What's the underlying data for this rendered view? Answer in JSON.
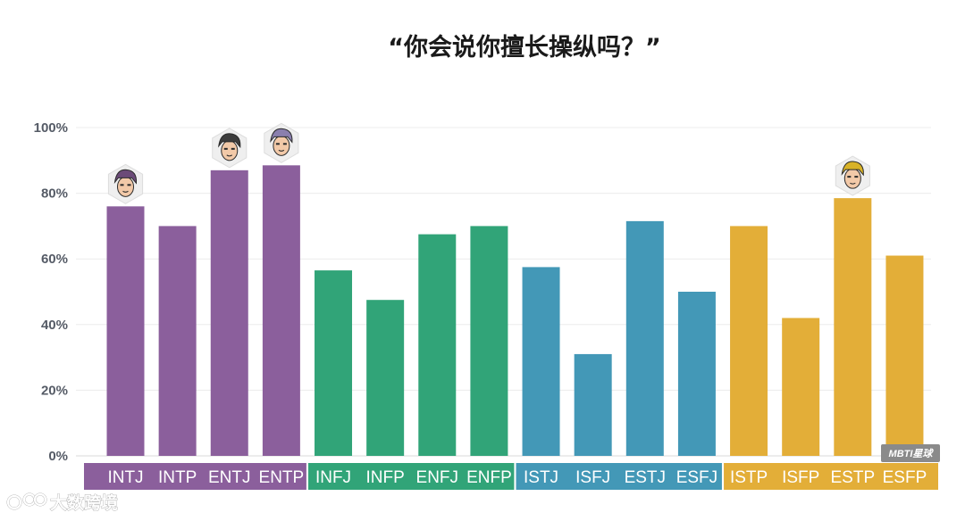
{
  "chart_data": {
    "type": "bar",
    "title": "“你会说你擅长操纵吗？”",
    "ylim": [
      0,
      100
    ],
    "yticks": [
      "0%",
      "20%",
      "40%",
      "60%",
      "80%",
      "100%"
    ],
    "grid": true,
    "categories": [
      "INTJ",
      "INTP",
      "ENTJ",
      "ENTP",
      "INFJ",
      "INFP",
      "ENFJ",
      "ENFP",
      "ISTJ",
      "ISFJ",
      "ESTJ",
      "ESFJ",
      "ISTP",
      "ISFP",
      "ESTP",
      "ESFP"
    ],
    "values": [
      76,
      70,
      87,
      88.5,
      56.5,
      47.5,
      67.5,
      70,
      57.5,
      31,
      71.5,
      50,
      70,
      42,
      78.5,
      61
    ],
    "groups": [
      {
        "members": [
          "INTJ",
          "INTP",
          "ENTJ",
          "ENTP"
        ],
        "color": "#8b5f9c"
      },
      {
        "members": [
          "INFJ",
          "INFP",
          "ENFJ",
          "ENFP"
        ],
        "color": "#31a478"
      },
      {
        "members": [
          "ISTJ",
          "ISFJ",
          "ESTJ",
          "ESFJ"
        ],
        "color": "#4398b7"
      },
      {
        "members": [
          "ISTP",
          "ISFP",
          "ESTP",
          "ESFP"
        ],
        "color": "#e3ae38"
      }
    ],
    "avatars_on": [
      "INTJ",
      "ENTJ",
      "ENTP",
      "ESTP"
    ]
  },
  "badge": "MBTI星球",
  "watermark": "大数跨境"
}
